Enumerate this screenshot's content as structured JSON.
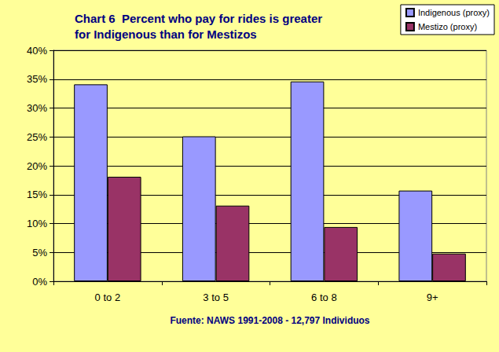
{
  "chart_data": {
    "type": "bar",
    "title": "Chart 6  Percent who pay for rides is greater\nfor Indigenous than for Mestizos",
    "xlabel": "Fuente: NAWS 1991-2008 - 12,797 Individuos",
    "categories": [
      "0 to 2",
      "3 to 5",
      "6 to 8",
      "9+"
    ],
    "series": [
      {
        "name": "Indigenous (proxy)",
        "color": "#9999ff",
        "values": [
          34.1,
          25.1,
          34.6,
          15.7
        ]
      },
      {
        "name": "Mestizo (proxy)",
        "color": "#993366",
        "values": [
          18.1,
          13.1,
          9.4,
          4.8
        ]
      }
    ],
    "ylim": [
      0,
      40
    ],
    "yticks": [
      {
        "value": 0,
        "label": "0%"
      },
      {
        "value": 5,
        "label": "5%"
      },
      {
        "value": 10,
        "label": "10%"
      },
      {
        "value": 15,
        "label": "15%"
      },
      {
        "value": 20,
        "label": "20%"
      },
      {
        "value": 25,
        "label": "25%"
      },
      {
        "value": 30,
        "label": "30%"
      },
      {
        "value": 35,
        "label": "35%"
      },
      {
        "value": 40,
        "label": "40%"
      }
    ],
    "grid": true,
    "legend": "top-right"
  }
}
